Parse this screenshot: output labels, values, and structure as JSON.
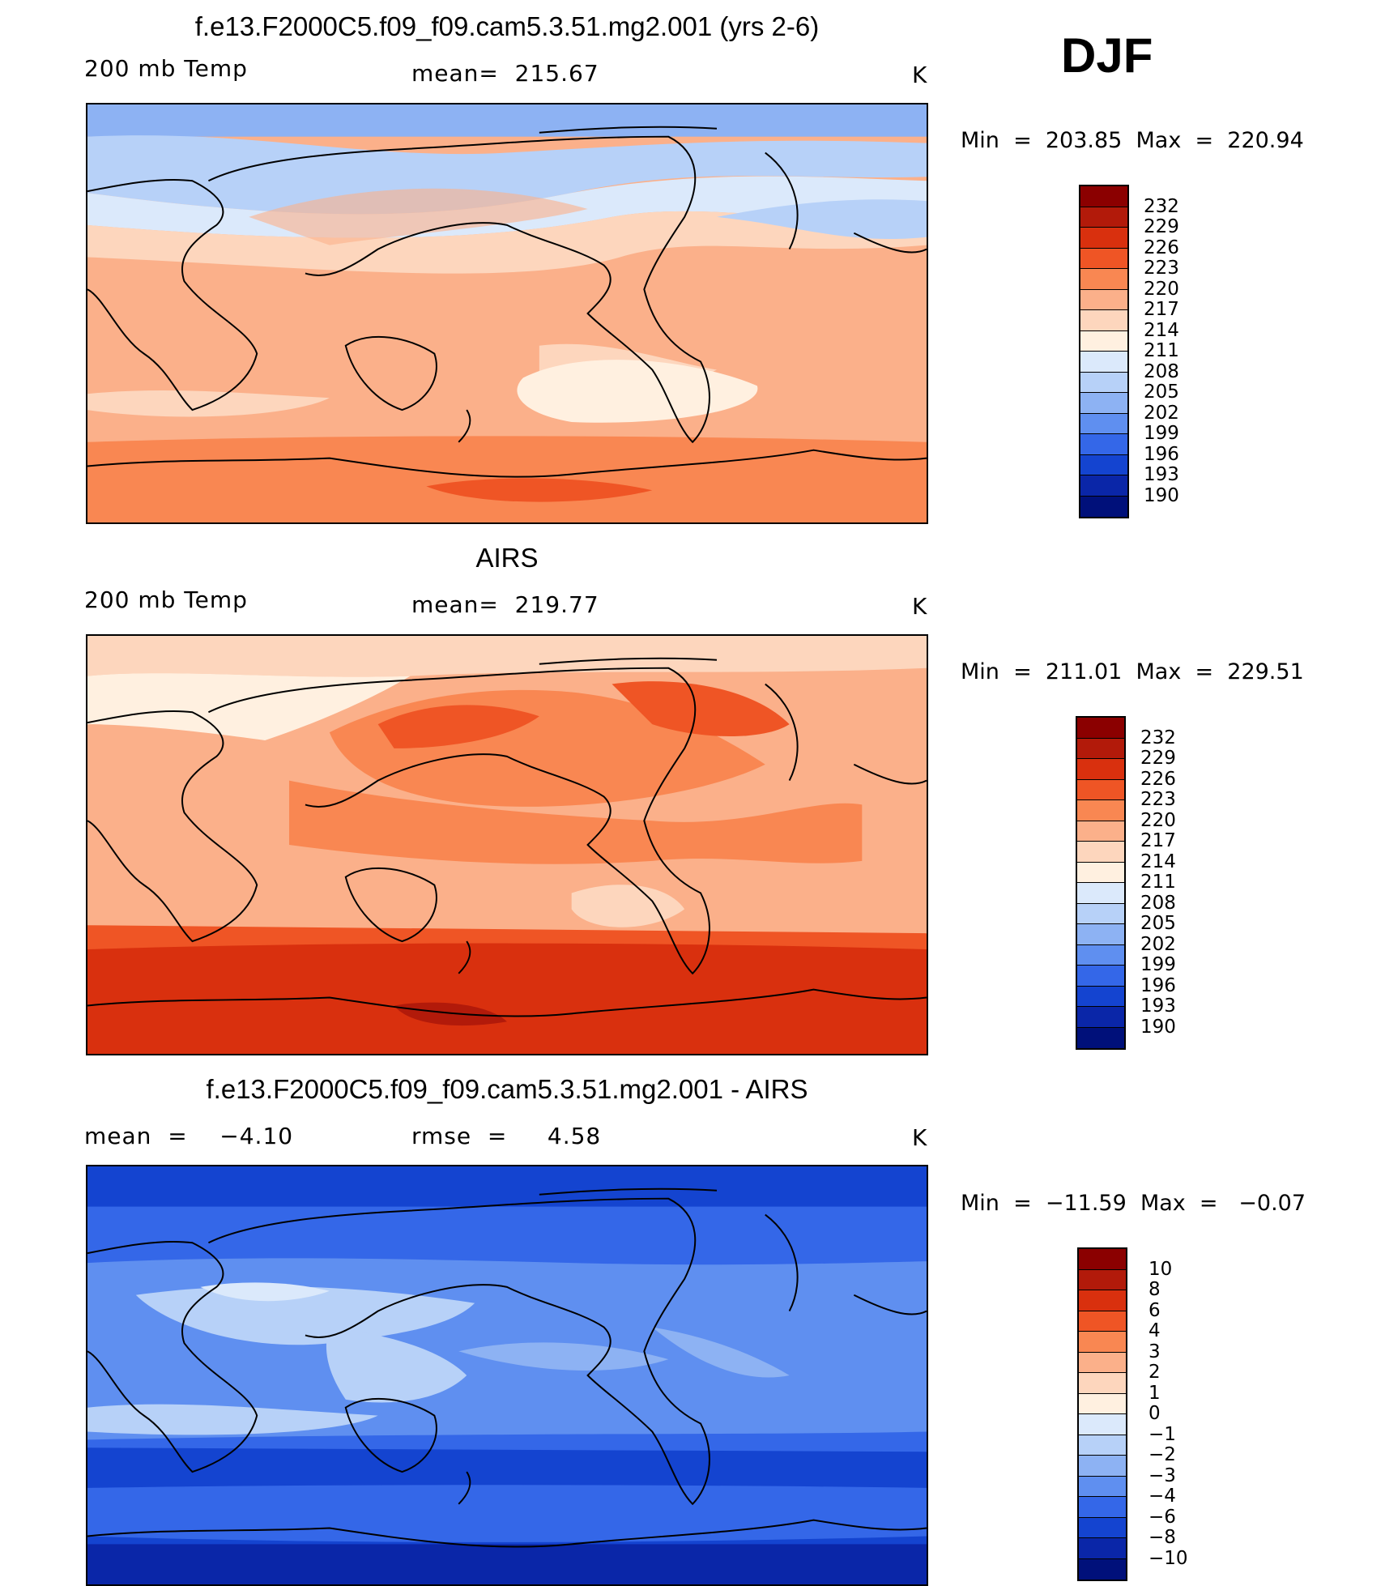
{
  "season": "DJF",
  "panels": [
    {
      "title": "f.e13.F2000C5.f09_f09.cam5.3.51.mg2.001 (yrs 2-6)",
      "left_label": "200 mb Temp",
      "center_label": "mean=  215.67",
      "units": "K",
      "minmax": "Min  =  203.85  Max  =  220.94",
      "colorbar_ticks": [
        "232",
        "229",
        "226",
        "223",
        "220",
        "217",
        "214",
        "211",
        "208",
        "205",
        "202",
        "199",
        "196",
        "193",
        "190"
      ],
      "colorbar_colors": [
        "#8b0000",
        "#b21a0a",
        "#d9300e",
        "#ef5525",
        "#f98752",
        "#fbb08a",
        "#fdd6bd",
        "#fff0e0",
        "#dbe9fb",
        "#b7d1f8",
        "#8db2f3",
        "#5f8ff0",
        "#3467e8",
        "#1444d0",
        "#0a26a8",
        "#00107a"
      ]
    },
    {
      "title": "AIRS",
      "left_label": "200 mb Temp",
      "center_label": "mean=  219.77",
      "units": "K",
      "minmax": "Min  =  211.01  Max  =  229.51",
      "colorbar_ticks": [
        "232",
        "229",
        "226",
        "223",
        "220",
        "217",
        "214",
        "211",
        "208",
        "205",
        "202",
        "199",
        "196",
        "193",
        "190"
      ],
      "colorbar_colors": [
        "#8b0000",
        "#b21a0a",
        "#d9300e",
        "#ef5525",
        "#f98752",
        "#fbb08a",
        "#fdd6bd",
        "#fff0e0",
        "#dbe9fb",
        "#b7d1f8",
        "#8db2f3",
        "#5f8ff0",
        "#3467e8",
        "#1444d0",
        "#0a26a8",
        "#00107a"
      ]
    },
    {
      "title": "f.e13.F2000C5.f09_f09.cam5.3.51.mg2.001 - AIRS",
      "left_label": "mean  =    −4.10",
      "center_label": "rmse  =     4.58",
      "units": "K",
      "minmax": "Min  =  −11.59  Max  =   −0.07",
      "colorbar_ticks": [
        "10",
        "8",
        "6",
        "4",
        "3",
        "2",
        "1",
        "0",
        "−1",
        "−2",
        "−3",
        "−4",
        "−6",
        "−8",
        "−10"
      ],
      "colorbar_colors": [
        "#8b0000",
        "#b21a0a",
        "#d9300e",
        "#ef5525",
        "#f98752",
        "#fbb08a",
        "#fdd6bd",
        "#fff0e0",
        "#dbe9fb",
        "#b7d1f8",
        "#8db2f3",
        "#5f8ff0",
        "#3467e8",
        "#1444d0",
        "#0a26a8",
        "#00107a"
      ]
    }
  ]
}
